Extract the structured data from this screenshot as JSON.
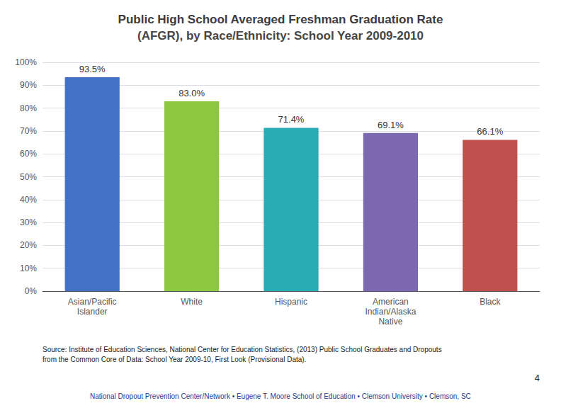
{
  "chart_data": {
    "type": "bar",
    "title": "Public High School Averaged Freshman Graduation Rate",
    "subtitle": "(AFGR), by Race/Ethnicity: School Year 2009-2010",
    "categories": [
      "Asian/Pacific\nIslander",
      "White",
      "Hispanic",
      "American\nIndian/Alaska\nNative",
      "Black"
    ],
    "values": [
      93.5,
      83.0,
      71.4,
      69.1,
      66.1
    ],
    "value_labels": [
      "93.5%",
      "83.0%",
      "71.4%",
      "69.1%",
      "66.1%"
    ],
    "colors": [
      "#4472C4",
      "#8DC63F",
      "#29ABB4",
      "#7B68B0",
      "#C0504D"
    ],
    "ylim": [
      0,
      100
    ],
    "yticks": [
      {
        "value": 0,
        "label": "0%"
      },
      {
        "value": 10,
        "label": "10%"
      },
      {
        "value": 20,
        "label": "20%"
      },
      {
        "value": 30,
        "label": "30%"
      },
      {
        "value": 40,
        "label": "40%"
      },
      {
        "value": 50,
        "label": "50%"
      },
      {
        "value": 60,
        "label": "60%"
      },
      {
        "value": 70,
        "label": "70%"
      },
      {
        "value": 80,
        "label": "80%"
      },
      {
        "value": 90,
        "label": "90%"
      },
      {
        "value": 100,
        "label": "100%"
      }
    ],
    "grid": true,
    "data_labels": true,
    "annotations": [
      "Source: Institute of Education Sciences, National Center for Education Statistics, (2013) Public School Graduates and Dropouts\nfrom the Common Core of Data: School Year 2009-10, First Look (Provisional Data).",
      "National Dropout Prevention Center/Network • Eugene T. Moore School of Education • Clemson University • Clemson, SC",
      "4"
    ]
  }
}
